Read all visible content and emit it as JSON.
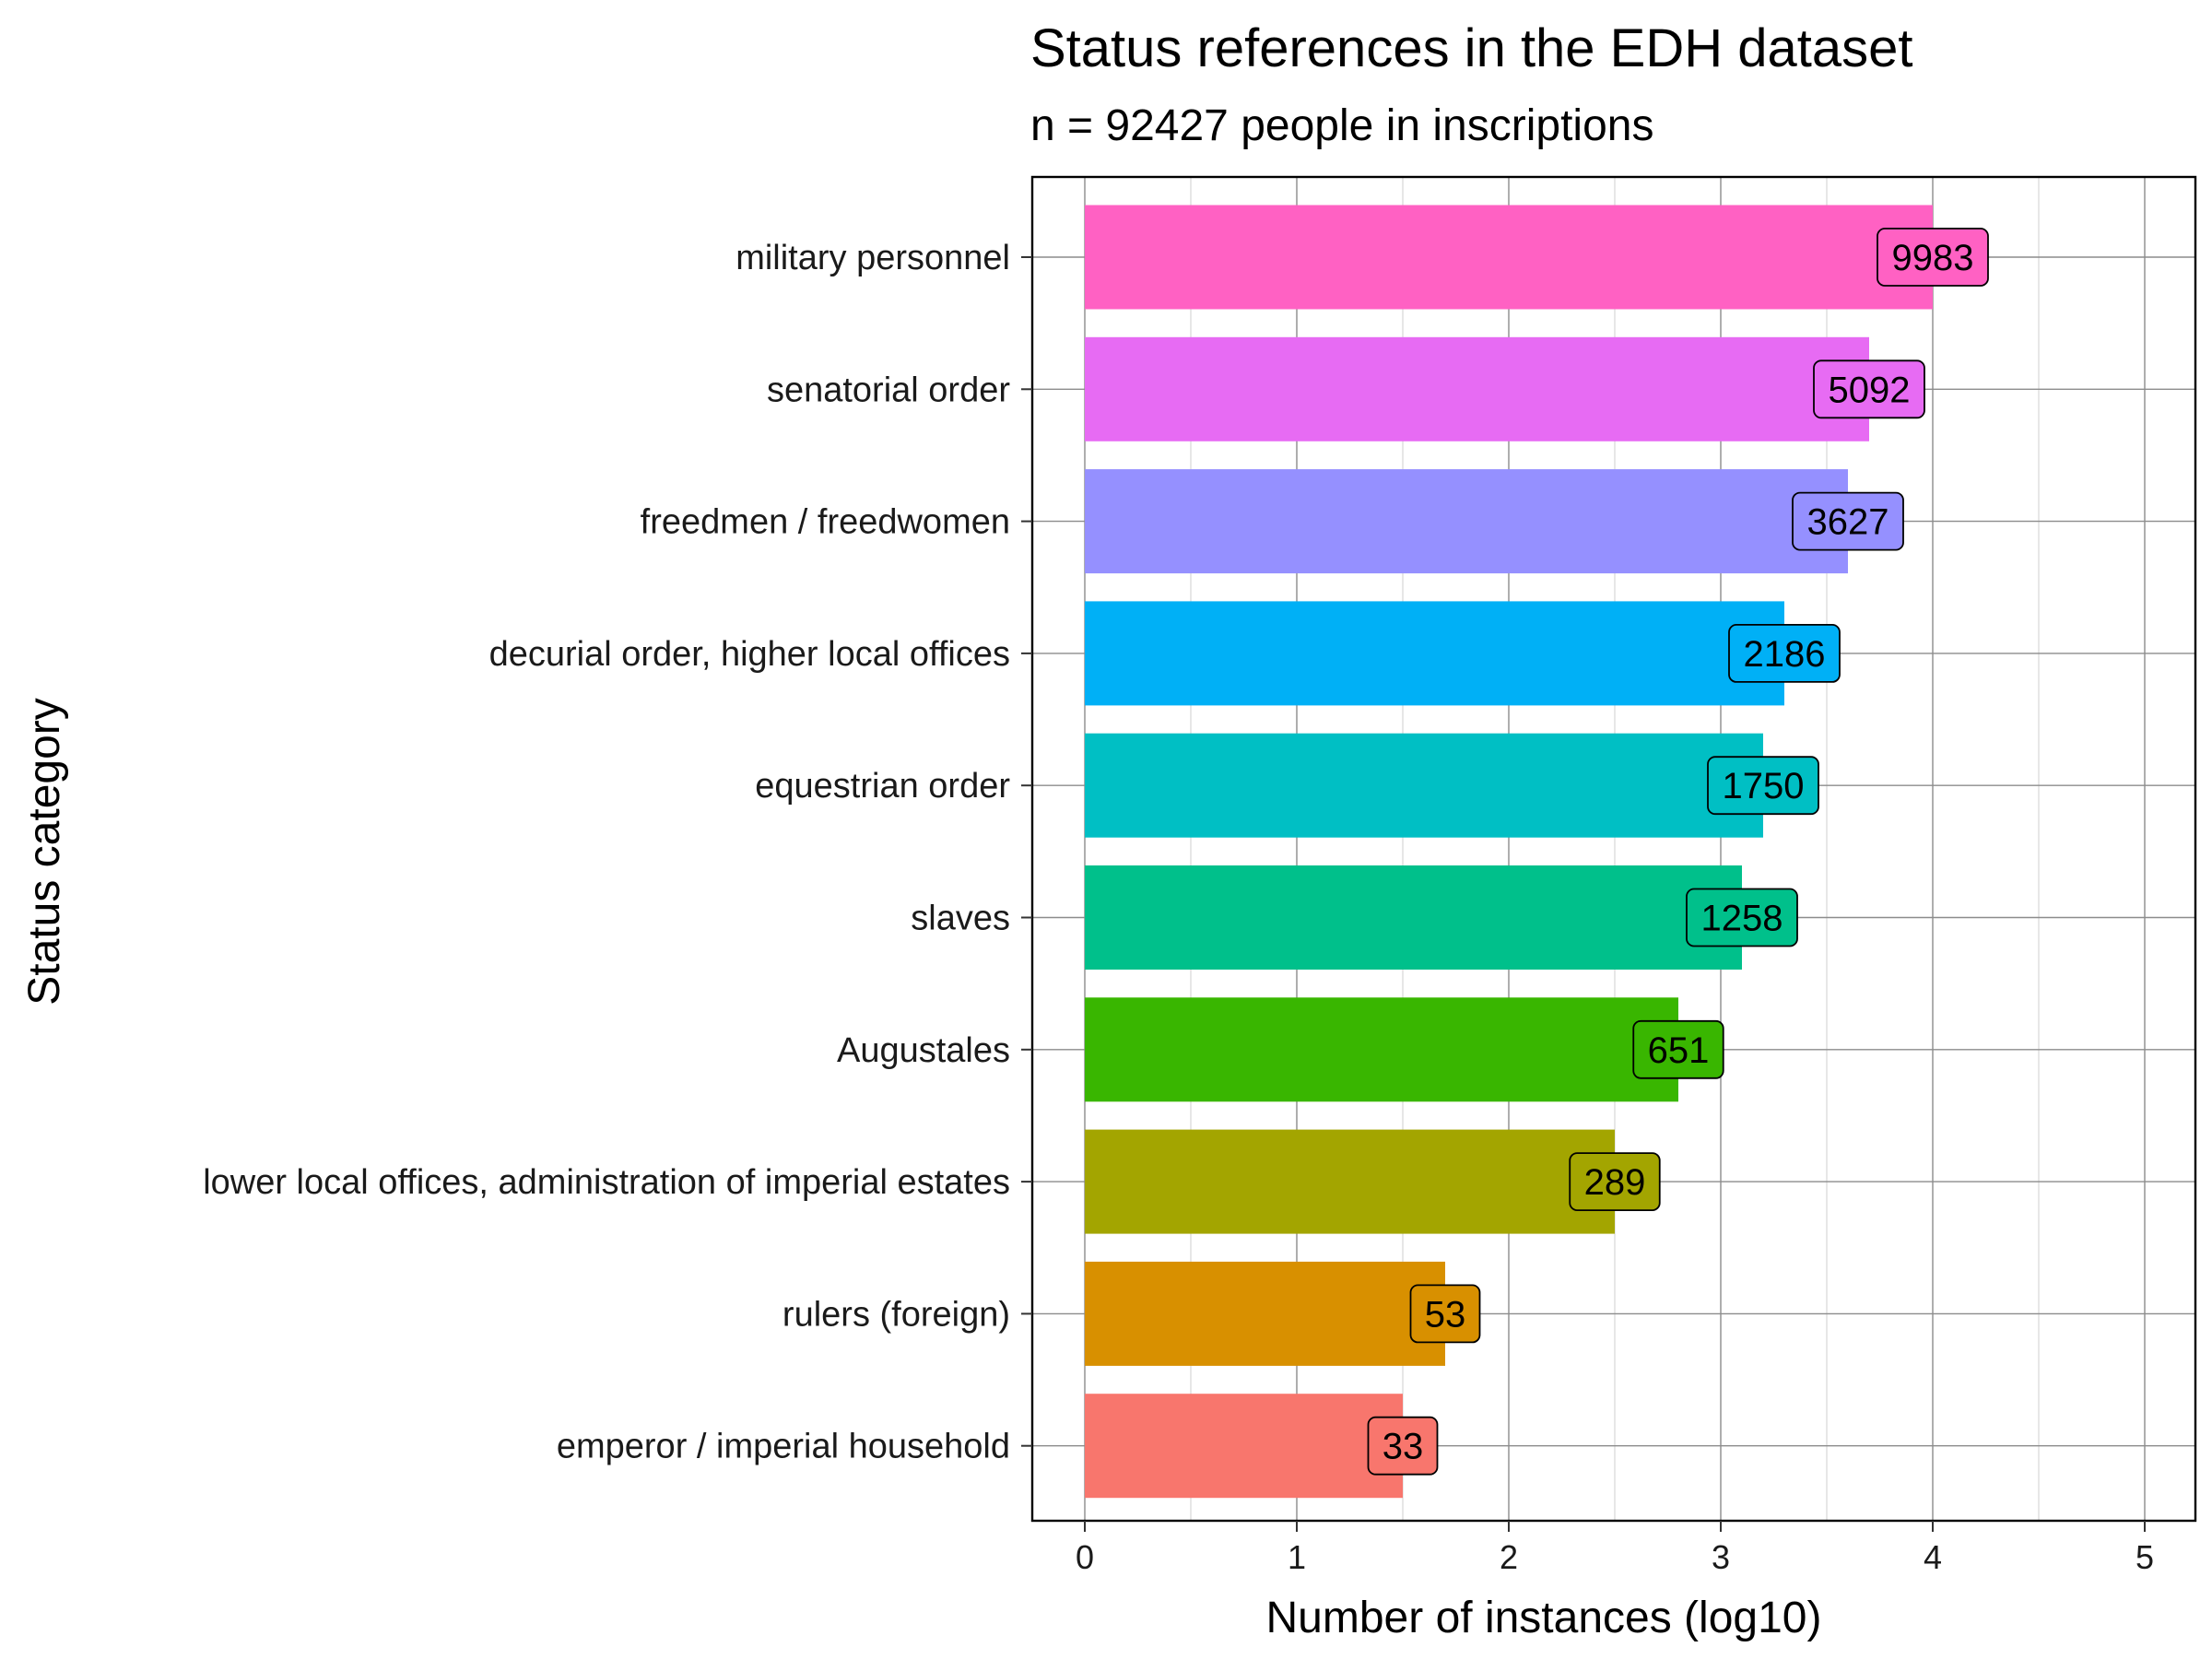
{
  "chart_data": {
    "type": "bar",
    "orientation": "horizontal",
    "title": "Status references in the EDH dataset",
    "subtitle": "n = 92427 people in inscriptions",
    "xlabel": "Number of instances (log10)",
    "ylabel": "Status category",
    "xlim": [
      0,
      5
    ],
    "x_ticks": [
      "0",
      "1",
      "2",
      "3",
      "4",
      "5"
    ],
    "grid": true,
    "legend": "none",
    "categories": [
      "military personnel",
      "senatorial order",
      "freedmen / freedwomen",
      "decurial order, higher local offices",
      "equestrian order",
      "slaves",
      "Augustales",
      "lower local offices, administration of imperial estates",
      "rulers (foreign)",
      "emperor / imperial household"
    ],
    "values": [
      4.0,
      3.7,
      3.6,
      3.3,
      3.2,
      3.1,
      2.8,
      2.5,
      1.7,
      1.5
    ],
    "data_labels": [
      "9983",
      "5092",
      "3627",
      "2186",
      "1750",
      "1258",
      "651",
      "289",
      "53",
      "33"
    ],
    "colors": [
      "#FF61C3",
      "#E76BF3",
      "#9590FF",
      "#00B0F6",
      "#00BFC4",
      "#00C08B",
      "#39B600",
      "#A3A500",
      "#D89000",
      "#F8766D"
    ]
  }
}
